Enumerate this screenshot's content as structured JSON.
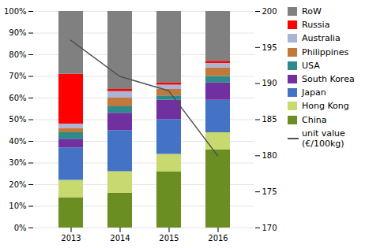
{
  "chart_data": {
    "type": "bar",
    "stacked": true,
    "categories": [
      "2013",
      "2014",
      "2015",
      "2016"
    ],
    "series": [
      {
        "name": "China",
        "color": "#6b8e23",
        "values": [
          14,
          16,
          26,
          36
        ]
      },
      {
        "name": "Hong Kong",
        "color": "#c8d96f",
        "values": [
          8,
          10,
          8,
          8
        ]
      },
      {
        "name": "Japan",
        "color": "#4472c4",
        "values": [
          15,
          19,
          16,
          15
        ]
      },
      {
        "name": "South Korea",
        "color": "#7030a0",
        "values": [
          4,
          8,
          9,
          8
        ]
      },
      {
        "name": "USA",
        "color": "#2e8b8b",
        "values": [
          3,
          3,
          2,
          3
        ]
      },
      {
        "name": "Philippines",
        "color": "#c0783c",
        "values": [
          2,
          4,
          3,
          4
        ]
      },
      {
        "name": "Australia",
        "color": "#aab4d4",
        "values": [
          2,
          3,
          2,
          2
        ]
      },
      {
        "name": "Russia",
        "color": "#ff0000",
        "values": [
          23,
          1,
          1,
          1
        ]
      },
      {
        "name": "RoW",
        "color": "#808080",
        "values": [
          29,
          36,
          33,
          23
        ]
      },
      {
        "name": "unit value\n(€/100kg)",
        "type": "line",
        "axis": "y2",
        "color": "#505050",
        "values": [
          196,
          191,
          189,
          180
        ]
      }
    ],
    "ylim": [
      0,
      100
    ],
    "yticks": [
      {
        "value": 0,
        "label": "0%"
      },
      {
        "value": 10,
        "label": "10%"
      },
      {
        "value": 20,
        "label": "20%"
      },
      {
        "value": 30,
        "label": "30%"
      },
      {
        "value": 40,
        "label": "40%"
      },
      {
        "value": 50,
        "label": "50%"
      },
      {
        "value": 60,
        "label": "60%"
      },
      {
        "value": 70,
        "label": "70%"
      },
      {
        "value": 80,
        "label": "80%"
      },
      {
        "value": 90,
        "label": "90%"
      },
      {
        "value": 100,
        "label": "100%"
      }
    ],
    "y2lim": [
      170,
      200
    ],
    "y2ticks": [
      170,
      175,
      180,
      185,
      190,
      195,
      200
    ],
    "grid": true,
    "legend": "right"
  }
}
